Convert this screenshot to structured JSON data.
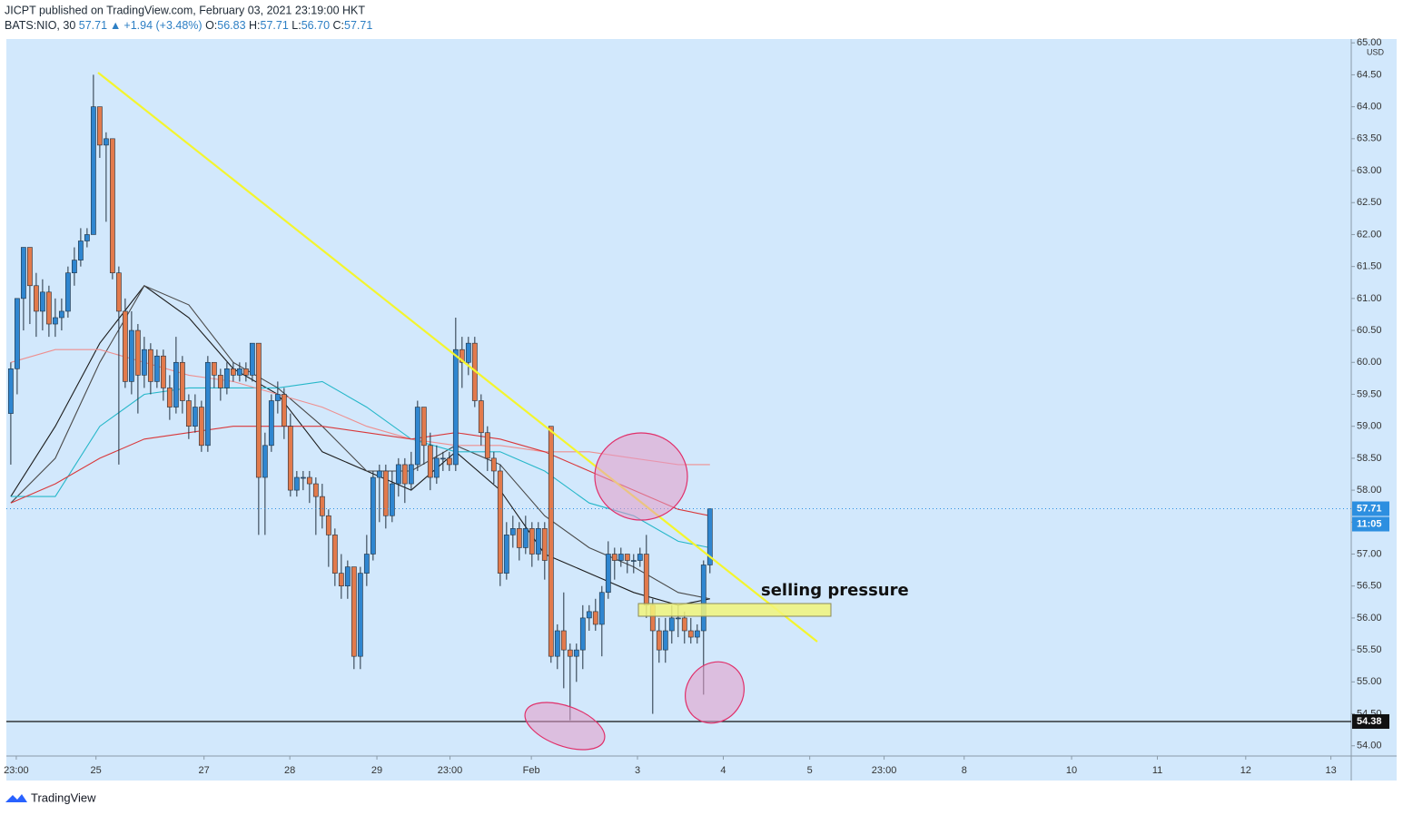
{
  "header": {
    "title": "JICPT published on TradingView.com, February 03, 2021 23:19:00 HKT",
    "symbol": "BATS:NIO, 30",
    "last": "57.71",
    "arrow": "▲",
    "change": "+1.94 (+3.48%)",
    "o_label": "O:",
    "open": "56.83",
    "h_label": "H:",
    "high": "57.71",
    "l_label": "L:",
    "low": "56.70",
    "c_label": "C:",
    "close": "57.71"
  },
  "footer": {
    "brand": "TradingView"
  },
  "chart_data": {
    "type": "candlestick",
    "series": [
      {
        "up_color": "#2f86d0",
        "down_color": "#e27a4c",
        "wick_color": "#22313f",
        "ohlc": [
          [
            59.2,
            60.0,
            58.4,
            59.9
          ],
          [
            59.9,
            61.0,
            59.5,
            61.0
          ],
          [
            61.0,
            61.8,
            60.5,
            61.8
          ],
          [
            61.8,
            61.8,
            60.6,
            61.2
          ],
          [
            61.2,
            61.4,
            60.4,
            60.8
          ],
          [
            60.8,
            61.3,
            60.5,
            61.1
          ],
          [
            61.1,
            61.2,
            60.4,
            60.6
          ],
          [
            60.6,
            61.0,
            60.4,
            60.7
          ],
          [
            60.7,
            61.0,
            60.5,
            60.8
          ],
          [
            60.8,
            61.5,
            60.7,
            61.4
          ],
          [
            61.4,
            61.8,
            61.2,
            61.6
          ],
          [
            61.6,
            62.1,
            61.5,
            61.9
          ],
          [
            61.9,
            62.1,
            61.8,
            62.0
          ],
          [
            62.0,
            64.5,
            62.0,
            64.0
          ],
          [
            64.0,
            64.0,
            63.2,
            63.4
          ],
          [
            63.4,
            63.6,
            62.2,
            63.5
          ],
          [
            63.5,
            63.5,
            61.3,
            61.4
          ],
          [
            61.4,
            61.5,
            58.4,
            60.8
          ],
          [
            60.8,
            61.0,
            59.6,
            59.7
          ],
          [
            59.7,
            60.8,
            59.5,
            60.5
          ],
          [
            60.5,
            60.6,
            59.2,
            59.8
          ],
          [
            59.8,
            60.4,
            59.6,
            60.2
          ],
          [
            60.2,
            60.3,
            59.5,
            59.7
          ],
          [
            59.7,
            60.2,
            59.6,
            60.1
          ],
          [
            60.1,
            60.2,
            59.4,
            59.6
          ],
          [
            59.6,
            59.8,
            59.1,
            59.3
          ],
          [
            59.3,
            60.4,
            59.2,
            60.0
          ],
          [
            60.0,
            60.1,
            59.2,
            59.4
          ],
          [
            59.4,
            59.5,
            58.8,
            59.0
          ],
          [
            59.0,
            59.5,
            58.9,
            59.3
          ],
          [
            59.3,
            59.4,
            58.6,
            58.7
          ],
          [
            58.7,
            60.1,
            58.6,
            60.0
          ],
          [
            60.0,
            60.0,
            59.6,
            59.8
          ],
          [
            59.8,
            59.9,
            59.4,
            59.6
          ],
          [
            59.6,
            60.0,
            59.5,
            59.9
          ],
          [
            59.9,
            60.0,
            59.7,
            59.8
          ],
          [
            59.8,
            60.0,
            59.7,
            59.9
          ],
          [
            59.9,
            60.0,
            59.7,
            59.8
          ],
          [
            59.8,
            60.3,
            59.7,
            60.3
          ],
          [
            60.3,
            60.3,
            57.3,
            58.2
          ],
          [
            58.2,
            58.9,
            57.3,
            58.7
          ],
          [
            58.7,
            59.5,
            58.6,
            59.4
          ],
          [
            59.4,
            59.7,
            59.2,
            59.5
          ],
          [
            59.5,
            59.6,
            58.8,
            59.0
          ],
          [
            59.0,
            59.2,
            57.9,
            58.0
          ],
          [
            58.0,
            58.3,
            57.9,
            58.2
          ],
          [
            58.2,
            58.3,
            58.0,
            58.2
          ],
          [
            58.2,
            58.3,
            57.8,
            58.1
          ],
          [
            58.1,
            58.2,
            57.3,
            57.9
          ],
          [
            57.9,
            58.1,
            57.4,
            57.6
          ],
          [
            57.6,
            57.7,
            56.8,
            57.3
          ],
          [
            57.3,
            57.4,
            56.5,
            56.7
          ],
          [
            56.7,
            57.0,
            56.3,
            56.5
          ],
          [
            56.5,
            56.9,
            56.3,
            56.8
          ],
          [
            56.8,
            56.8,
            55.2,
            55.4
          ],
          [
            55.4,
            56.8,
            55.2,
            56.7
          ],
          [
            56.7,
            57.3,
            56.5,
            57.0
          ],
          [
            57.0,
            58.3,
            56.9,
            58.2
          ],
          [
            58.2,
            58.4,
            57.5,
            58.3
          ],
          [
            58.3,
            58.4,
            57.4,
            57.6
          ],
          [
            57.6,
            58.3,
            57.5,
            58.1
          ],
          [
            58.1,
            58.5,
            57.9,
            58.4
          ],
          [
            58.4,
            58.5,
            57.8,
            58.1
          ],
          [
            58.1,
            58.6,
            58.0,
            58.4
          ],
          [
            58.4,
            59.4,
            58.3,
            59.3
          ],
          [
            59.3,
            59.3,
            58.4,
            58.7
          ],
          [
            58.7,
            58.9,
            58.0,
            58.2
          ],
          [
            58.2,
            58.7,
            58.1,
            58.5
          ],
          [
            58.5,
            58.6,
            58.3,
            58.5
          ],
          [
            58.5,
            58.6,
            58.3,
            58.4
          ],
          [
            58.4,
            60.7,
            58.3,
            60.2
          ],
          [
            60.2,
            60.4,
            59.6,
            60.0
          ],
          [
            60.0,
            60.4,
            59.8,
            60.3
          ],
          [
            60.3,
            60.4,
            59.3,
            59.4
          ],
          [
            59.4,
            59.5,
            58.7,
            58.9
          ],
          [
            58.9,
            59.0,
            58.3,
            58.5
          ],
          [
            58.5,
            58.6,
            58.1,
            58.3
          ],
          [
            58.3,
            58.4,
            56.5,
            56.7
          ],
          [
            56.7,
            57.5,
            56.6,
            57.3
          ],
          [
            57.3,
            57.6,
            57.1,
            57.4
          ],
          [
            57.4,
            57.5,
            56.9,
            57.1
          ],
          [
            57.1,
            57.6,
            57.0,
            57.4
          ],
          [
            57.4,
            57.5,
            56.8,
            57.0
          ],
          [
            57.0,
            57.5,
            56.9,
            57.4
          ],
          [
            57.4,
            57.5,
            56.6,
            56.9
          ],
          [
            59.0,
            59.0,
            55.3,
            55.4
          ],
          [
            55.4,
            55.9,
            55.2,
            55.8
          ],
          [
            55.8,
            56.4,
            54.9,
            55.5
          ],
          [
            55.5,
            55.6,
            54.4,
            55.4
          ],
          [
            55.4,
            55.6,
            55.0,
            55.5
          ],
          [
            55.5,
            56.2,
            55.2,
            56.0
          ],
          [
            56.0,
            56.2,
            55.8,
            56.1
          ],
          [
            56.1,
            56.3,
            55.8,
            55.9
          ],
          [
            55.9,
            56.5,
            55.4,
            56.4
          ],
          [
            56.4,
            57.2,
            56.3,
            57.0
          ],
          [
            57.0,
            57.1,
            56.6,
            56.9
          ],
          [
            56.9,
            57.1,
            56.8,
            57.0
          ],
          [
            57.0,
            57.0,
            56.7,
            56.9
          ],
          [
            56.9,
            57.0,
            56.7,
            56.9
          ],
          [
            56.9,
            57.1,
            56.8,
            57.0
          ],
          [
            57.0,
            57.3,
            56.0,
            56.2
          ],
          [
            56.2,
            56.3,
            54.5,
            55.8
          ],
          [
            55.8,
            56.0,
            55.3,
            55.5
          ],
          [
            55.5,
            56.0,
            55.3,
            55.8
          ],
          [
            55.8,
            56.2,
            55.6,
            56.0
          ],
          [
            56.0,
            56.2,
            55.7,
            56.0
          ],
          [
            56.0,
            56.1,
            55.6,
            55.8
          ],
          [
            55.8,
            56.0,
            55.6,
            55.7
          ],
          [
            55.7,
            55.9,
            55.6,
            55.8
          ],
          [
            55.8,
            56.9,
            54.8,
            56.83
          ],
          [
            56.83,
            57.71,
            56.7,
            57.71
          ]
        ]
      }
    ],
    "indicators": [
      {
        "color": "#1c1c1c",
        "x": [
          0,
          7,
          14,
          21,
          28,
          35,
          42,
          49,
          56,
          63,
          70,
          77,
          84,
          91,
          98,
          105,
          110
        ],
        "values": [
          57.9,
          59.0,
          60.3,
          61.2,
          60.7,
          59.9,
          59.5,
          58.6,
          58.3,
          58.0,
          58.6,
          58.0,
          57.0,
          56.7,
          56.4,
          56.2,
          56.3
        ]
      },
      {
        "color": "#4a4a4a",
        "x": [
          0,
          7,
          14,
          21,
          28,
          35,
          42,
          49,
          56,
          63,
          70,
          77,
          84,
          91,
          98,
          105,
          110
        ],
        "values": [
          57.8,
          58.5,
          60.0,
          61.2,
          60.9,
          60.0,
          59.6,
          59.0,
          58.3,
          58.3,
          58.7,
          58.4,
          57.6,
          57.1,
          56.8,
          56.4,
          56.3
        ]
      },
      {
        "color": "#26b7c9",
        "x": [
          0,
          7,
          14,
          21,
          28,
          35,
          42,
          49,
          56,
          63,
          70,
          77,
          84,
          91,
          98,
          105,
          110
        ],
        "values": [
          57.9,
          57.9,
          59.0,
          59.5,
          59.6,
          59.6,
          59.6,
          59.7,
          59.3,
          58.8,
          58.6,
          58.6,
          58.3,
          57.8,
          57.6,
          57.2,
          57.1
        ]
      },
      {
        "color": "#ee8f8f",
        "x": [
          0,
          7,
          14,
          21,
          28,
          35,
          42,
          49,
          56,
          63,
          70,
          77,
          84,
          91,
          98,
          105,
          110
        ],
        "values": [
          60.0,
          60.2,
          60.2,
          60.0,
          59.8,
          59.7,
          59.5,
          59.3,
          59.0,
          58.8,
          58.7,
          58.7,
          58.6,
          58.6,
          58.5,
          58.4,
          58.4
        ]
      },
      {
        "color": "#d9383a",
        "x": [
          0,
          7,
          14,
          21,
          28,
          35,
          42,
          49,
          56,
          63,
          70,
          77,
          84,
          91,
          98,
          105,
          110
        ],
        "values": [
          57.8,
          58.1,
          58.5,
          58.8,
          58.9,
          59.0,
          59.0,
          59.0,
          58.9,
          58.8,
          58.9,
          58.8,
          58.6,
          58.3,
          58.0,
          57.7,
          57.6
        ]
      }
    ],
    "xlim": [
      -0.7,
      210.9
    ],
    "xticks": [
      {
        "value": 0.86,
        "label": "23:00"
      },
      {
        "value": 13.4,
        "label": "25"
      },
      {
        "value": 30.4,
        "label": "27"
      },
      {
        "value": 43.9,
        "label": "28"
      },
      {
        "value": 57.6,
        "label": "29"
      },
      {
        "value": 69.1,
        "label": "23:00"
      },
      {
        "value": 81.9,
        "label": "Feb"
      },
      {
        "value": 98.6,
        "label": "3"
      },
      {
        "value": 112.1,
        "label": "4"
      },
      {
        "value": 125.7,
        "label": "5"
      },
      {
        "value": 137.4,
        "label": "23:00"
      },
      {
        "value": 150,
        "label": "8"
      },
      {
        "value": 166.9,
        "label": "10"
      },
      {
        "value": 180.4,
        "label": "11"
      },
      {
        "value": 194.3,
        "label": "12"
      },
      {
        "value": 207.7,
        "label": "13"
      }
    ],
    "ylim": [
      53.84,
      65.06
    ],
    "yticks": [
      {
        "value": 54,
        "label": "54.00"
      },
      {
        "value": 54.5,
        "label": "54.50"
      },
      {
        "value": 55,
        "label": "55.00"
      },
      {
        "value": 55.5,
        "label": "55.50"
      },
      {
        "value": 56,
        "label": "56.00"
      },
      {
        "value": 56.5,
        "label": "56.50"
      },
      {
        "value": 57,
        "label": "57.00"
      },
      {
        "value": 57.5,
        "label": "57.50"
      },
      {
        "value": 58,
        "label": "58.00"
      },
      {
        "value": 58.5,
        "label": "58.50"
      },
      {
        "value": 59,
        "label": "59.00"
      },
      {
        "value": 59.5,
        "label": "59.50"
      },
      {
        "value": 60,
        "label": "60.00"
      },
      {
        "value": 60.5,
        "label": "60.50"
      },
      {
        "value": 61,
        "label": "61.00"
      },
      {
        "value": 61.5,
        "label": "61.50"
      },
      {
        "value": 62,
        "label": "62.00"
      },
      {
        "value": 62.5,
        "label": "62.50"
      },
      {
        "value": 63,
        "label": "63.00"
      },
      {
        "value": 63.5,
        "label": "63.50"
      },
      {
        "value": 64,
        "label": "64.00"
      },
      {
        "value": 64.5,
        "label": "64.50"
      },
      {
        "value": 65,
        "label": "65.00"
      }
    ],
    "grid": false,
    "currency": "USD",
    "last_price": 57.71,
    "last_color": "#2d8fe0",
    "countdown": "11:05",
    "support": 54.38,
    "annotation": "selling pressure"
  }
}
